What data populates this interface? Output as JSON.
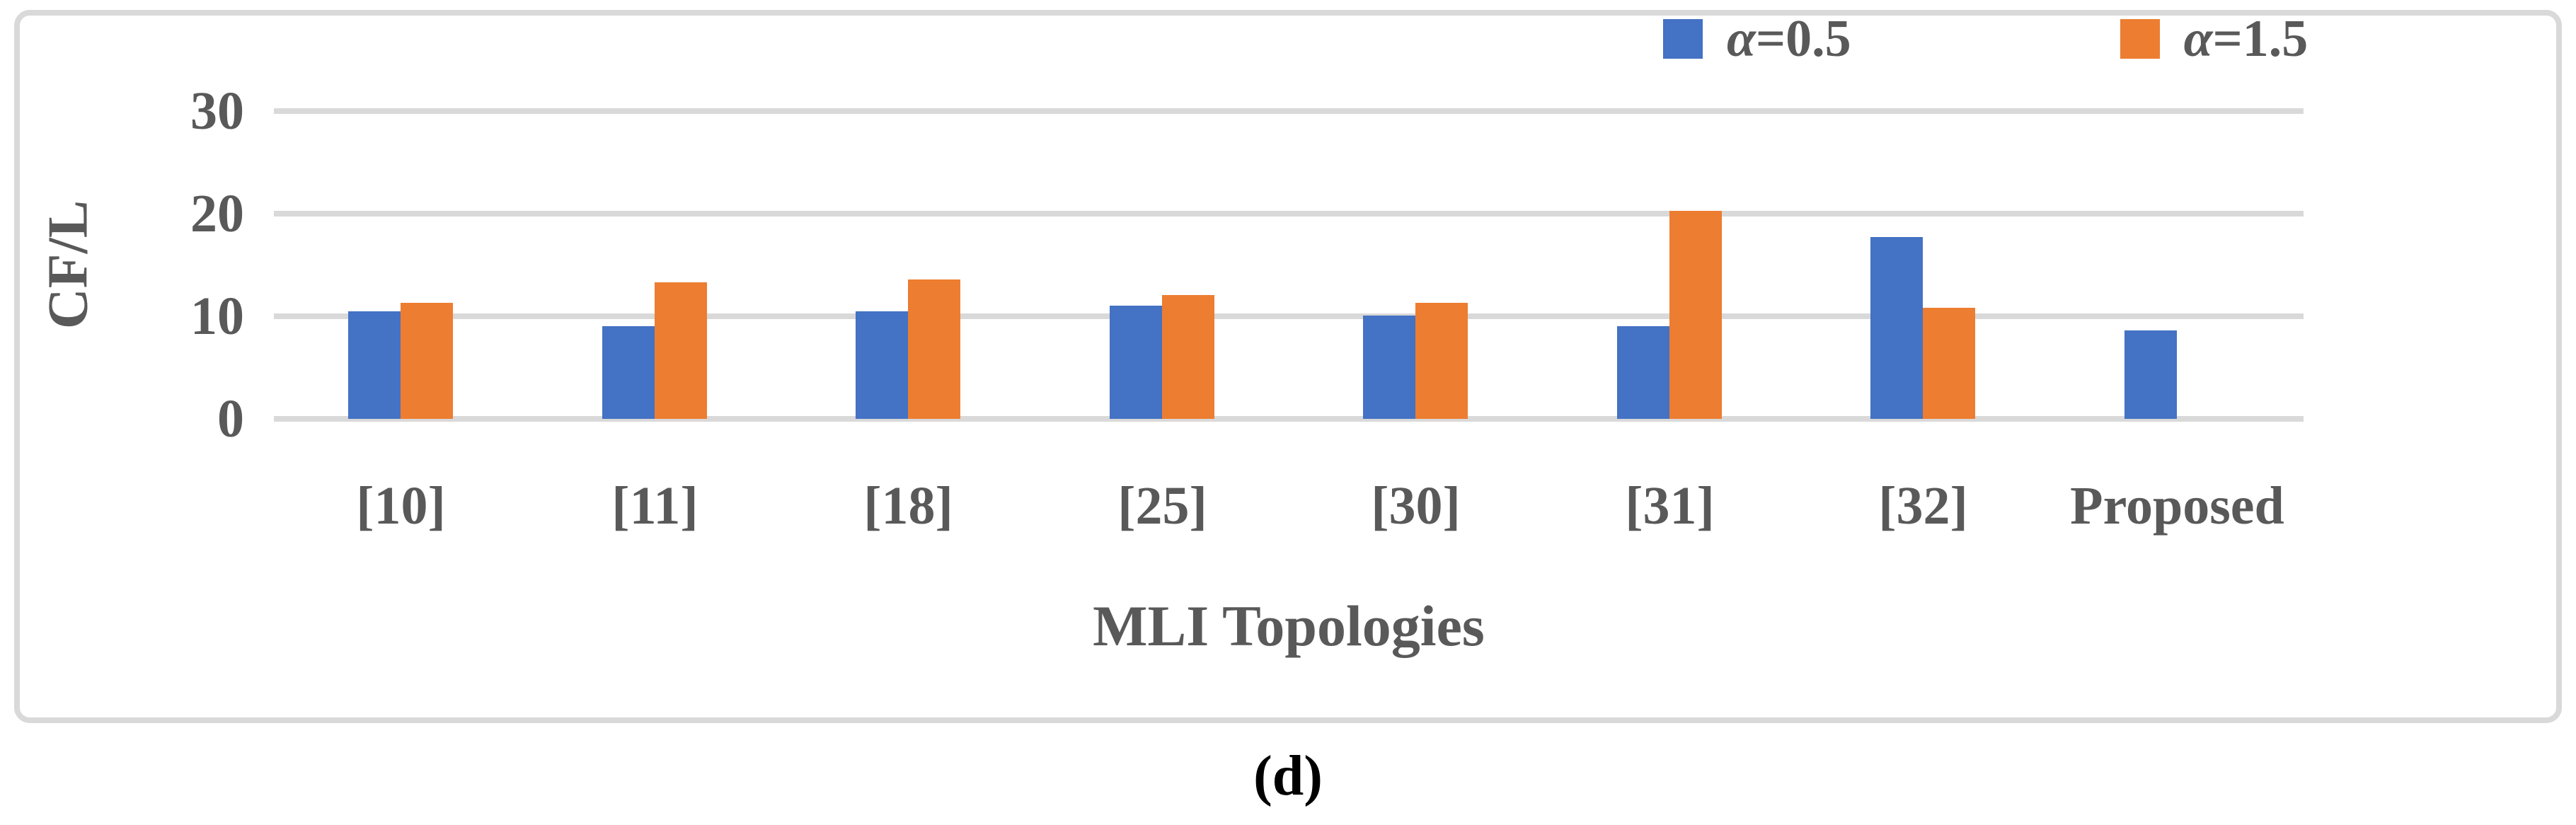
{
  "figure": {
    "caption": "(d)"
  },
  "chart_data": {
    "type": "bar",
    "title": "",
    "xlabel": "MLI Topologies",
    "ylabel": "CF/L",
    "categories": [
      "[10]",
      "[11]",
      "[18]",
      "[25]",
      "[30]",
      "[31]",
      "[32]",
      "Proposed"
    ],
    "series": [
      {
        "name": "α=0.5",
        "symbol": "α",
        "label_rest": "=0.5",
        "color": "#4472C4",
        "values": [
          10.5,
          9.0,
          10.5,
          11.0,
          10.1,
          9.0,
          17.7,
          8.6
        ]
      },
      {
        "name": "α=1.5",
        "symbol": "α",
        "label_rest": "=1.5",
        "color": "#ED7D31",
        "values": [
          11.3,
          13.3,
          13.6,
          12.1,
          11.3,
          20.3,
          10.8,
          null
        ]
      }
    ],
    "yticks": [
      0,
      10,
      20,
      30
    ],
    "ylim": [
      0,
      30
    ],
    "grid": "horizontal",
    "legend_position": "top-right"
  },
  "colors": {
    "gridline": "#D9D9D9",
    "frame_border": "#D9D9D9",
    "axis_text": "#595959",
    "caption_text": "#000000",
    "background": "#FFFFFF"
  }
}
